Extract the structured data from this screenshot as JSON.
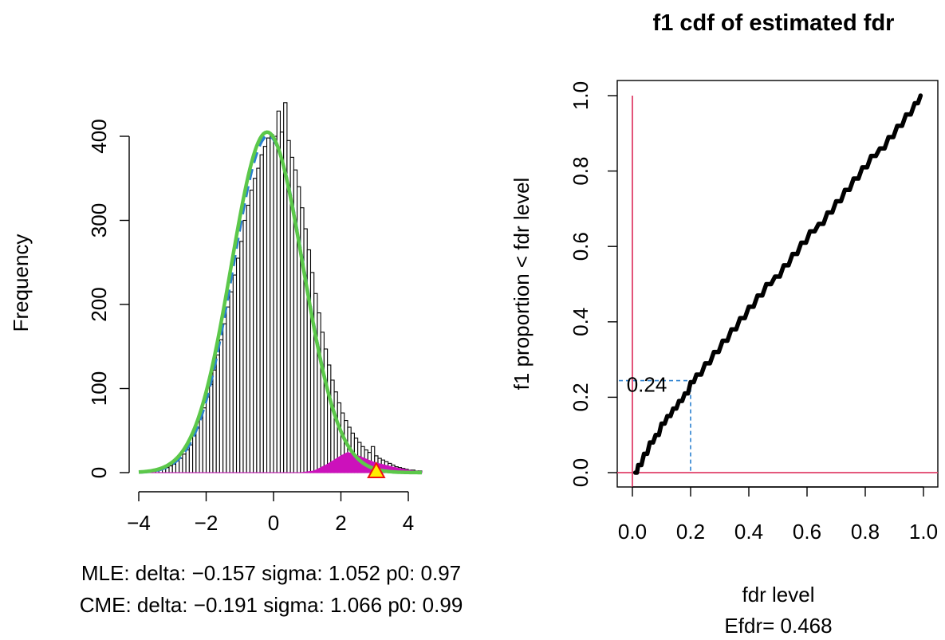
{
  "chart_data": [
    {
      "type": "bar",
      "panel": "left",
      "title": "",
      "xlabel": "",
      "ylabel": "Frequency",
      "xlim": [
        -4,
        4.4
      ],
      "ylim": [
        0,
        420
      ],
      "xticks": [
        -4,
        -2,
        0,
        2,
        4
      ],
      "xtick_labels": [
        "−4",
        "−2",
        "0",
        "2",
        "4"
      ],
      "yticks": [
        0,
        100,
        200,
        300,
        400
      ],
      "ytick_labels": [
        "0",
        "100",
        "200",
        "300",
        "400"
      ],
      "histogram": {
        "bin_start": -3.8,
        "bin_width": 0.1,
        "counts": [
          1,
          1,
          2,
          2,
          3,
          5,
          6,
          8,
          10,
          14,
          17,
          22,
          27,
          33,
          44,
          53,
          65,
          77,
          90,
          105,
          122,
          140,
          158,
          177,
          197,
          215,
          235,
          255,
          275,
          300,
          318,
          336,
          350,
          362,
          378,
          388,
          398,
          402,
          400,
          430,
          405,
          440,
          395,
          375,
          360,
          340,
          315,
          290,
          265,
          238,
          213,
          190,
          167,
          147,
          128,
          110,
          96,
          83,
          71,
          62,
          54,
          47,
          41,
          36,
          31,
          27,
          24,
          31,
          20,
          17,
          15,
          13,
          11,
          9,
          7,
          6,
          5,
          4,
          3,
          3,
          2,
          2
        ]
      },
      "magenta_fill": {
        "color": "#cc11bb",
        "x": [
          -3.8,
          0.8,
          1.2,
          1.6,
          2.0,
          2.2,
          2.4,
          2.7,
          3.0,
          3.3,
          3.6,
          4.0,
          4.4
        ],
        "y": [
          0,
          0,
          2,
          10,
          20,
          24,
          22,
          17,
          12,
          9,
          6,
          3,
          1
        ]
      },
      "series": [
        {
          "name": "",
          "style": "dashed",
          "color": "#2a80d0",
          "mean": -0.157,
          "sd": 1.052,
          "scale": 401
        },
        {
          "name": "",
          "style": "solid",
          "color": "#5cc84a",
          "mean": -0.191,
          "sd": 1.066,
          "scale": 405
        }
      ],
      "marker": {
        "x": 3.05,
        "y": 0,
        "shape": "triangle",
        "fill": "#ffee00",
        "stroke": "#ee1111"
      },
      "notes": [
        "MLE: delta: −0.157 sigma: 1.052 p0: 0.97",
        "CME: delta: −0.191 sigma: 1.066 p0: 0.99"
      ]
    },
    {
      "type": "line",
      "panel": "right",
      "title": "f1 cdf of estimated fdr",
      "xlabel": "fdr level",
      "ylabel": "f1 proportion < fdr level",
      "xlim": [
        -0.04,
        1.04
      ],
      "ylim": [
        -0.04,
        1.04
      ],
      "xticks": [
        0,
        0.2,
        0.4,
        0.6,
        0.8,
        1.0
      ],
      "xtick_labels": [
        "0.0",
        "0.2",
        "0.4",
        "0.6",
        "0.8",
        "1.0"
      ],
      "yticks": [
        0,
        0.2,
        0.4,
        0.6,
        0.8,
        1.0
      ],
      "ytick_labels": [
        "0.0",
        "0.2",
        "0.4",
        "0.6",
        "0.8",
        "1.0"
      ],
      "grid": false,
      "series": [
        {
          "name": "",
          "color": "#000000",
          "x": [
            0.01,
            0.02,
            0.04,
            0.06,
            0.08,
            0.1,
            0.12,
            0.14,
            0.16,
            0.18,
            0.2,
            0.22,
            0.25,
            0.28,
            0.31,
            0.34,
            0.37,
            0.4,
            0.43,
            0.46,
            0.49,
            0.52,
            0.55,
            0.58,
            0.61,
            0.64,
            0.67,
            0.7,
            0.73,
            0.76,
            0.79,
            0.82,
            0.85,
            0.88,
            0.91,
            0.94,
            0.97,
            0.99
          ],
          "y": [
            0.0,
            0.02,
            0.05,
            0.08,
            0.1,
            0.13,
            0.15,
            0.17,
            0.19,
            0.21,
            0.24,
            0.26,
            0.29,
            0.32,
            0.35,
            0.38,
            0.41,
            0.44,
            0.47,
            0.5,
            0.52,
            0.55,
            0.58,
            0.61,
            0.64,
            0.66,
            0.69,
            0.72,
            0.75,
            0.78,
            0.81,
            0.84,
            0.86,
            0.89,
            0.92,
            0.95,
            0.98,
            1.0
          ]
        }
      ],
      "reference_lines": {
        "color": "#e0406a",
        "vertical_x": 0,
        "horizontal_y": 0
      },
      "annotation": {
        "x": 0.2,
        "y": 0.244,
        "label": "0.24",
        "color": "#2a80d0"
      },
      "efdr_label": "Efdr=  0.468"
    }
  ]
}
